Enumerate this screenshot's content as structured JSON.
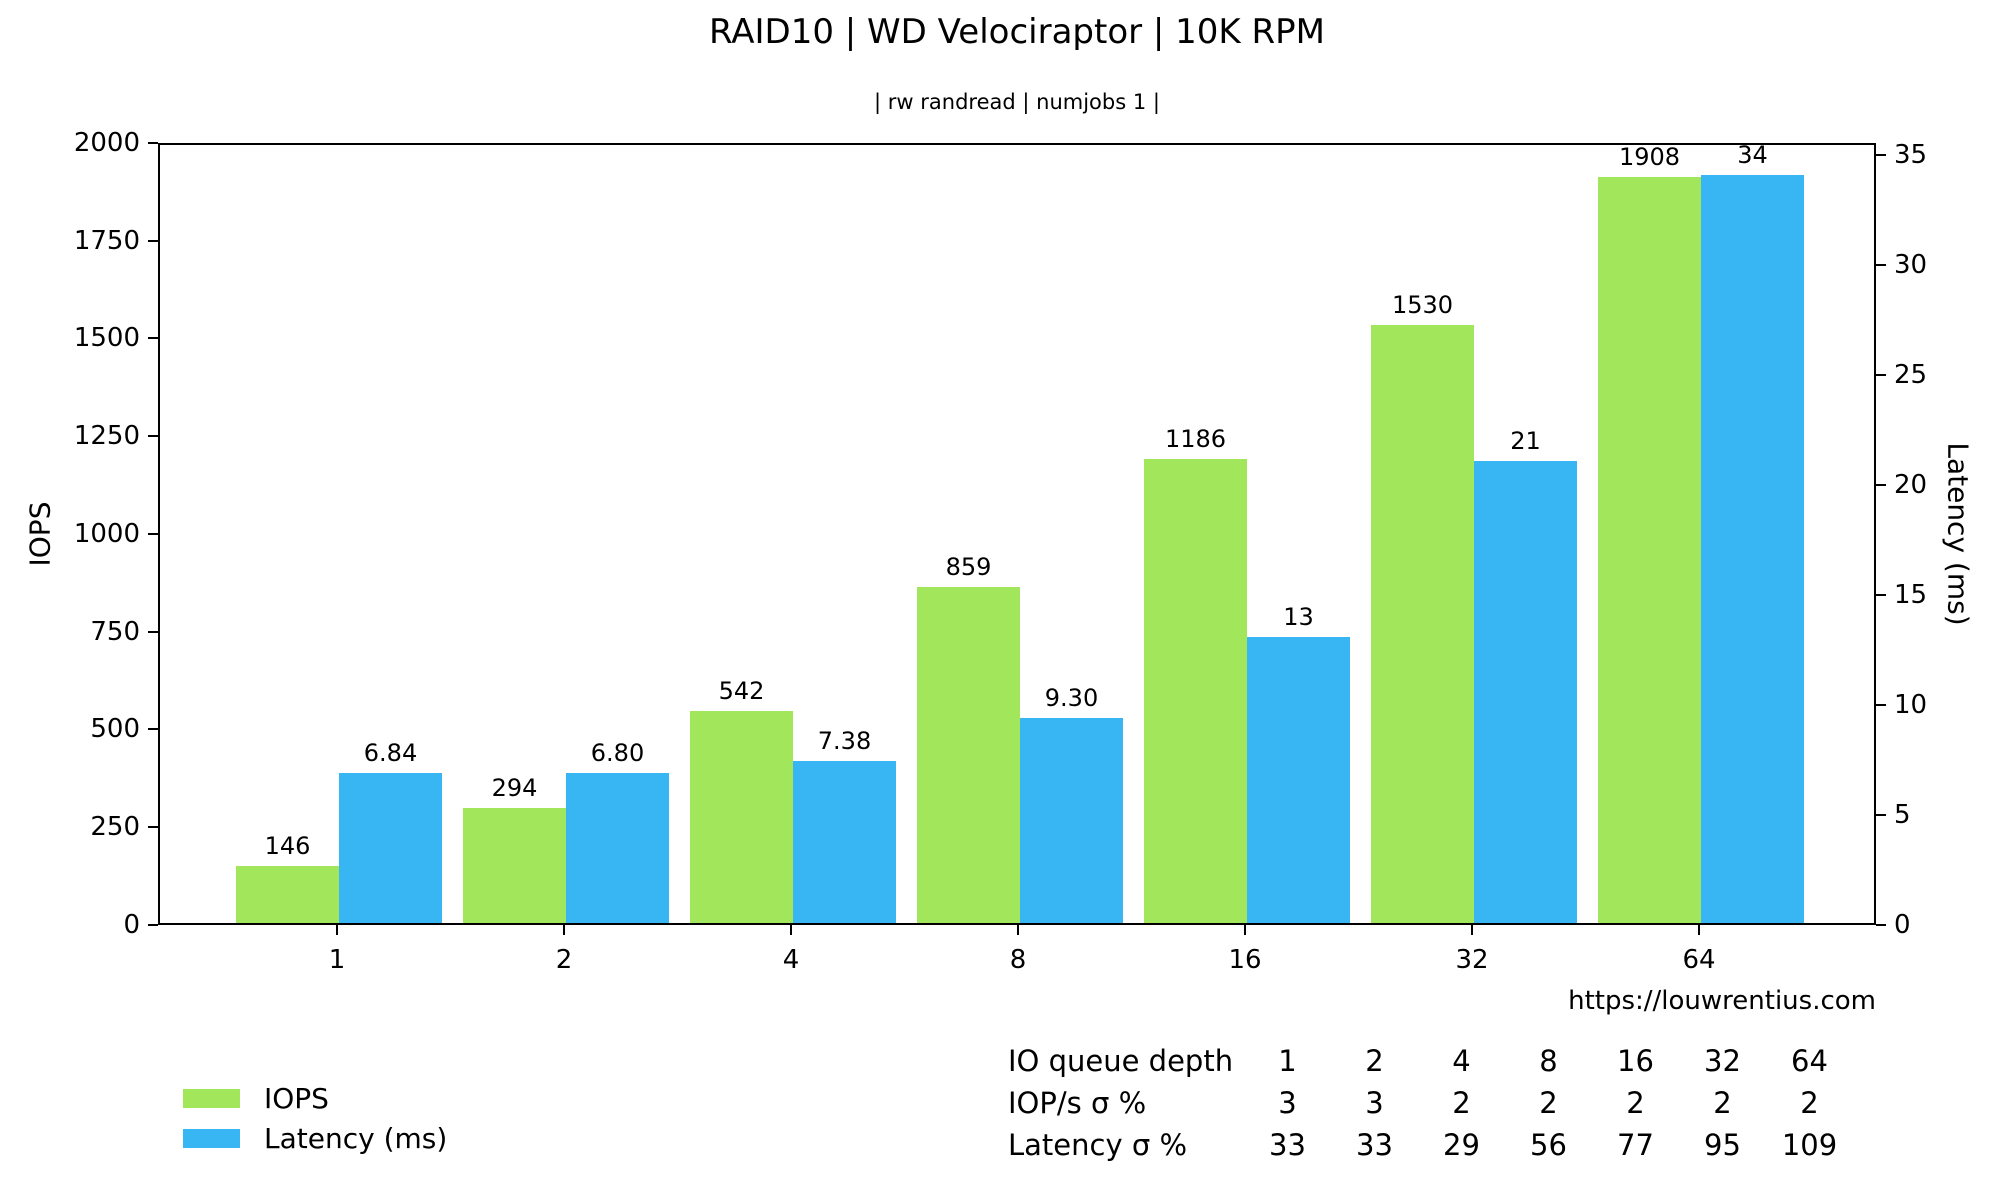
{
  "title": "RAID10 | WD Velociraptor | 10K RPM",
  "subtitle": "| rw randread | numjobs 1 |",
  "watermark": "https://louwrentius.com",
  "colors": {
    "iops": "#a2e65c",
    "latency": "#38b5f3",
    "axis": "#000000",
    "background": "#ffffff"
  },
  "chart_data": {
    "type": "bar",
    "categories": [
      "1",
      "2",
      "4",
      "8",
      "16",
      "32",
      "64"
    ],
    "series": [
      {
        "name": "IOPS",
        "axis": "left",
        "color_key": "iops",
        "values": [
          146,
          294,
          542,
          859,
          1186,
          1530,
          1908
        ],
        "labels": [
          "146",
          "294",
          "542",
          "859",
          "1186",
          "1530",
          "1908"
        ]
      },
      {
        "name": "Latency (ms)",
        "axis": "right",
        "color_key": "latency",
        "values": [
          6.84,
          6.8,
          7.38,
          9.3,
          13,
          21,
          34
        ],
        "labels": [
          "6.84",
          "6.80",
          "7.38",
          "9.30",
          "13",
          "21",
          "34"
        ]
      }
    ],
    "left_axis": {
      "label": "IOPS",
      "min": 0,
      "max": 2000,
      "ticks": [
        0,
        250,
        500,
        750,
        1000,
        1250,
        1500,
        1750,
        2000
      ]
    },
    "right_axis": {
      "label": "Latency (ms)",
      "min": 0,
      "max": 35.55,
      "ticks": [
        0,
        5,
        10,
        15,
        20,
        25,
        30,
        35
      ]
    },
    "xlabel": "",
    "grid": false,
    "legend_position": "bottom-left"
  },
  "legend": {
    "items": [
      {
        "label": "IOPS",
        "color_key": "iops"
      },
      {
        "label": "Latency (ms)",
        "color_key": "latency"
      }
    ]
  },
  "stats_table": {
    "rows": [
      {
        "label": "IO queue depth",
        "values": [
          "1",
          "2",
          "4",
          "8",
          "16",
          "32",
          "64"
        ]
      },
      {
        "label": "IOP/s σ %",
        "values": [
          "3",
          "3",
          "2",
          "2",
          "2",
          "2",
          "2"
        ]
      },
      {
        "label": "Latency σ %",
        "values": [
          "33",
          "33",
          "29",
          "56",
          "77",
          "95",
          "109"
        ]
      }
    ]
  }
}
